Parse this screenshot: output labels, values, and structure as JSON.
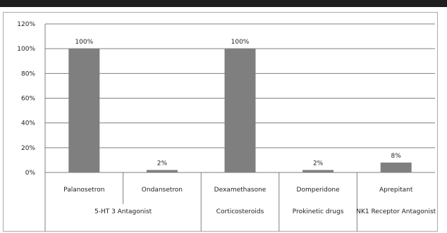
{
  "chart_data": {
    "type": "bar",
    "title": "",
    "xlabel": "",
    "ylabel": "",
    "ylim": [
      0,
      120
    ],
    "y_ticks": [
      0,
      20,
      40,
      60,
      80,
      100,
      120
    ],
    "y_tick_labels": [
      "0%",
      "20%",
      "40%",
      "60%",
      "80%",
      "100%",
      "120%"
    ],
    "categories": [
      "Palanosetron",
      "Ondansetron",
      "Dexamethasone",
      "Domperidone",
      "Aprepitant"
    ],
    "values": [
      100,
      2,
      100,
      2,
      8
    ],
    "data_labels": [
      "100%",
      "2%",
      "100%",
      "2%",
      "8%"
    ],
    "groups": [
      {
        "label": "5-HT 3 Antagonist",
        "categories": [
          0,
          1
        ]
      },
      {
        "label": "Corticosteroids",
        "categories": [
          2
        ]
      },
      {
        "label": "Prokinetic drugs",
        "categories": [
          3
        ]
      },
      {
        "label": "NK1 Receptor Antagonist",
        "categories": [
          4
        ]
      }
    ],
    "grid": true,
    "bar_color": "#7f7f7f",
    "grid_color": "#7f7f7f",
    "legend": "none"
  }
}
